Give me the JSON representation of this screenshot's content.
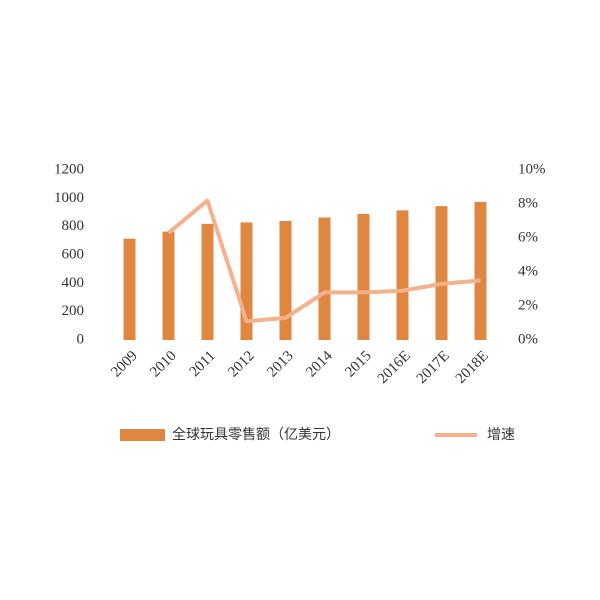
{
  "chart_data": {
    "type": "bar",
    "categories": [
      "2009",
      "2010",
      "2011",
      "2012",
      "2013",
      "2014",
      "2015",
      "2016E",
      "2017E",
      "2018E"
    ],
    "series": [
      {
        "name": "全球玩具零售额（亿美元）",
        "color": "#df8640",
        "values": [
          715,
          765,
          820,
          830,
          840,
          865,
          890,
          915,
          945,
          975
        ]
      },
      {
        "name": "增速",
        "type": "line",
        "axis": "y2",
        "color": "#f5b08c",
        "values": [
          null,
          6.3,
          8.2,
          1.1,
          1.3,
          2.8,
          2.8,
          2.9,
          3.3,
          3.5
        ]
      }
    ],
    "ylim": [
      0,
      1200
    ],
    "yticks": [
      0,
      200,
      400,
      600,
      800,
      1000,
      1200
    ],
    "y2lim": [
      0,
      10
    ],
    "y2ticks": [
      {
        "value": 0,
        "label": "0%"
      },
      {
        "value": 2,
        "label": "2%"
      },
      {
        "value": 4,
        "label": "4%"
      },
      {
        "value": 6,
        "label": "6%"
      },
      {
        "value": 8,
        "label": "8%"
      },
      {
        "value": 10,
        "label": "10%"
      }
    ],
    "legend": "bottom"
  }
}
